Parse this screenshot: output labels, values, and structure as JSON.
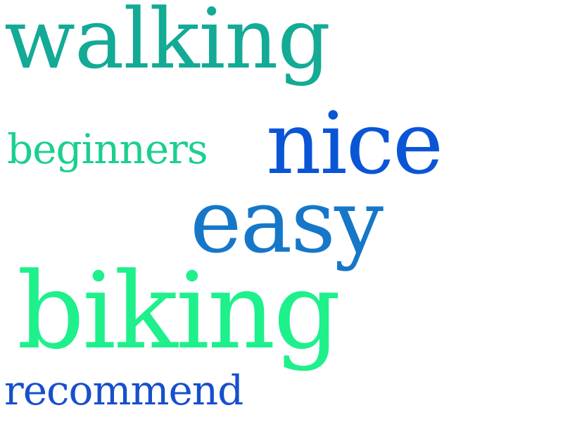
{
  "words": [
    {
      "text": "walking",
      "color": "#13aa96"
    },
    {
      "text": "beginners",
      "color": "#1ccf8f"
    },
    {
      "text": "nice",
      "color": "#0a55d6"
    },
    {
      "text": "easy",
      "color": "#1677c9"
    },
    {
      "text": "biking",
      "color": "#1ef08c"
    },
    {
      "text": "recommend",
      "color": "#1750cc"
    }
  ]
}
